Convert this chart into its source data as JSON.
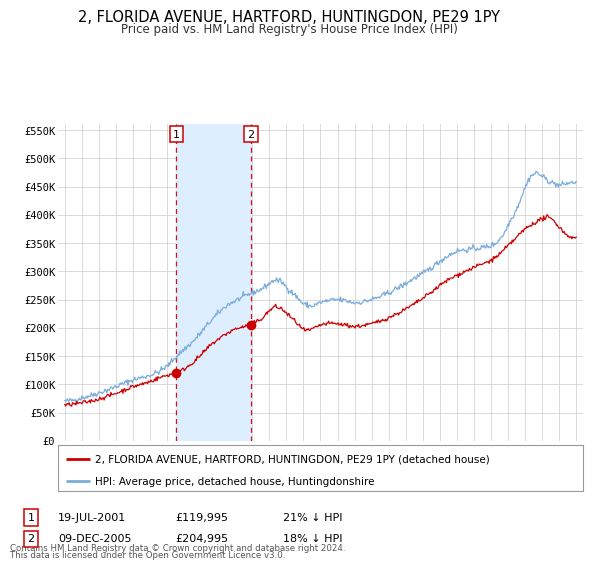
{
  "title": "2, FLORIDA AVENUE, HARTFORD, HUNTINGDON, PE29 1PY",
  "subtitle": "Price paid vs. HM Land Registry's House Price Index (HPI)",
  "title_fontsize": 10.5,
  "subtitle_fontsize": 8.5,
  "ylim": [
    0,
    560000
  ],
  "yticks": [
    0,
    50000,
    100000,
    150000,
    200000,
    250000,
    300000,
    350000,
    400000,
    450000,
    500000,
    550000
  ],
  "ytick_labels": [
    "£0",
    "£50K",
    "£100K",
    "£150K",
    "£200K",
    "£250K",
    "£300K",
    "£350K",
    "£400K",
    "£450K",
    "£500K",
    "£550K"
  ],
  "xlim_start": 1994.6,
  "xlim_end": 2025.4,
  "xticks": [
    1995,
    1996,
    1997,
    1998,
    1999,
    2000,
    2001,
    2002,
    2003,
    2004,
    2005,
    2006,
    2007,
    2008,
    2009,
    2010,
    2011,
    2012,
    2013,
    2014,
    2015,
    2016,
    2017,
    2018,
    2019,
    2020,
    2021,
    2022,
    2023,
    2024,
    2025
  ],
  "sale1_x": 2001.54,
  "sale1_y": 119995,
  "sale1_label": "1",
  "sale1_date": "19-JUL-2001",
  "sale1_price": "£119,995",
  "sale1_hpi": "21% ↓ HPI",
  "sale2_x": 2005.93,
  "sale2_y": 204995,
  "sale2_label": "2",
  "sale2_date": "09-DEC-2005",
  "sale2_price": "£204,995",
  "sale2_hpi": "18% ↓ HPI",
  "red_line_color": "#cc0000",
  "blue_line_color": "#7aaddc",
  "shade_color": "#ddeeff",
  "grid_color": "#cccccc",
  "bg_color": "#ffffff",
  "legend_red_label": "2, FLORIDA AVENUE, HARTFORD, HUNTINGDON, PE29 1PY (detached house)",
  "legend_blue_label": "HPI: Average price, detached house, Huntingdonshire",
  "footnote1": "Contains HM Land Registry data © Crown copyright and database right 2024.",
  "footnote2": "This data is licensed under the Open Government Licence v3.0."
}
